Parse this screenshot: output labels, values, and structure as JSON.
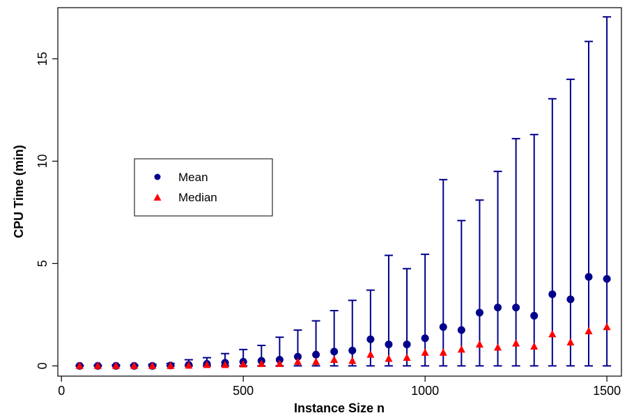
{
  "chart_data": {
    "type": "scatter",
    "title": "",
    "xlabel": "Instance Size n",
    "ylabel": "CPU Time (min)",
    "xlim": [
      -10,
      1540
    ],
    "ylim": [
      -0.5,
      17.5
    ],
    "xticks": [
      0,
      500,
      1000,
      1500
    ],
    "yticks": [
      0,
      5,
      10,
      15
    ],
    "grid": false,
    "legend_position": "center-left",
    "colors": {
      "mean": "#00008B",
      "median": "#FF0000"
    },
    "x": [
      50,
      100,
      150,
      200,
      250,
      300,
      350,
      400,
      450,
      500,
      550,
      600,
      650,
      700,
      750,
      800,
      850,
      900,
      950,
      1000,
      1050,
      1100,
      1150,
      1200,
      1250,
      1300,
      1350,
      1400,
      1450,
      1500
    ],
    "series": [
      {
        "name": "Mean",
        "marker": "circle",
        "values": [
          0.0,
          0.0,
          0.0,
          0.0,
          0.0,
          0.02,
          0.05,
          0.1,
          0.15,
          0.2,
          0.25,
          0.3,
          0.45,
          0.55,
          0.7,
          0.75,
          1.3,
          1.05,
          1.05,
          1.35,
          1.9,
          1.75,
          2.6,
          2.85,
          2.85,
          2.45,
          3.5,
          3.25,
          4.35,
          4.25
        ]
      },
      {
        "name": "Median",
        "marker": "triangle",
        "values": [
          0.0,
          0.0,
          0.0,
          0.0,
          0.0,
          0.0,
          0.02,
          0.05,
          0.05,
          0.08,
          0.1,
          0.1,
          0.2,
          0.2,
          0.3,
          0.25,
          0.55,
          0.35,
          0.4,
          0.65,
          0.65,
          0.8,
          1.05,
          0.9,
          1.1,
          0.95,
          1.55,
          1.15,
          1.7,
          1.9
        ]
      }
    ],
    "error_bars": {
      "lower": [
        0,
        0,
        0,
        0,
        0,
        0,
        0,
        0,
        0,
        0,
        0,
        0,
        0,
        0,
        0,
        0,
        0,
        0,
        0,
        0,
        0,
        0,
        0,
        0,
        0,
        0,
        0,
        0,
        0,
        0
      ],
      "upper": [
        0.02,
        0.03,
        0.05,
        0.05,
        0.08,
        0.12,
        0.3,
        0.4,
        0.6,
        0.8,
        1.0,
        1.4,
        1.75,
        2.2,
        2.7,
        3.2,
        3.7,
        5.4,
        4.75,
        5.45,
        9.1,
        7.1,
        8.1,
        9.5,
        11.1,
        11.3,
        13.05,
        14.0,
        15.85,
        17.05
      ]
    }
  }
}
